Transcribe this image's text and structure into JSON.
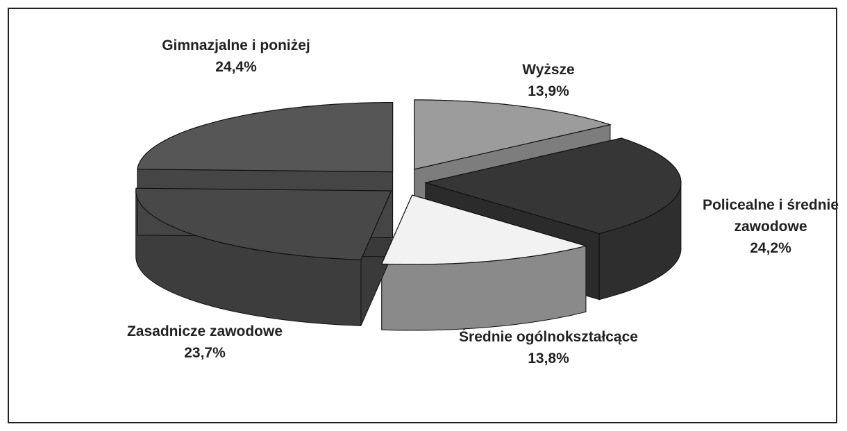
{
  "chart_data": {
    "type": "pie",
    "categories": [
      "Wyższe",
      "Policealne i średnie zawodowe",
      "Średnie ogólnokształcące",
      "Zasadnicze zawodowe",
      "Gimnazjalne i poniżej"
    ],
    "values": [
      13.9,
      24.2,
      13.8,
      23.7,
      24.4
    ],
    "value_labels": [
      "13,9%",
      "24,2%",
      "13,8%",
      "23,7%",
      "24,4%"
    ],
    "colors": [
      "#9c9c9c",
      "#363636",
      "#f2f2f2",
      "#484848",
      "#565656"
    ]
  }
}
